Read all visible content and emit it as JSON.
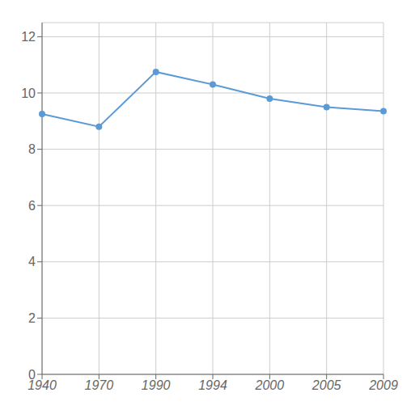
{
  "chart_data": {
    "type": "line",
    "categories": [
      "1940",
      "1970",
      "1990",
      "1994",
      "2000",
      "2005",
      "2009"
    ],
    "values": [
      9.25,
      8.8,
      10.75,
      10.3,
      9.8,
      9.5,
      9.35
    ],
    "color": "#5b9bd5",
    "marker": "circle",
    "ylim": [
      0,
      12.5
    ],
    "yticks": [
      0,
      2,
      4,
      6,
      8,
      10,
      12
    ],
    "grid": true
  }
}
